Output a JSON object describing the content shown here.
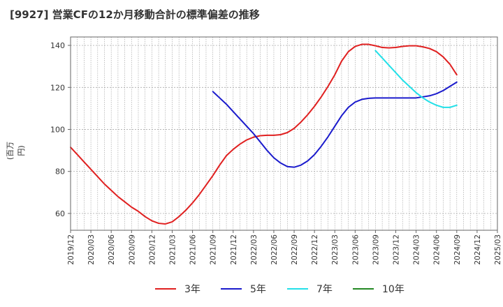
{
  "chart_data": {
    "type": "line",
    "title": "[9927]  営業CFの12か月移動合計の標準偏差の推移",
    "ylabel": "(百万円)",
    "ylim": [
      52,
      144
    ],
    "yticks": [
      60,
      80,
      100,
      120,
      140
    ],
    "xticks": [
      "2019/12",
      "2020/03",
      "2020/06",
      "2020/09",
      "2020/12",
      "2021/03",
      "2021/06",
      "2021/09",
      "2021/12",
      "2022/03",
      "2022/06",
      "2022/09",
      "2022/12",
      "2023/03",
      "2023/06",
      "2023/09",
      "2023/12",
      "2024/03",
      "2024/06",
      "2024/09",
      "2024/12",
      "2025/03"
    ],
    "grid": true,
    "legend_position": "bottom",
    "series": [
      {
        "name": "3年",
        "color": "#e02020",
        "points": [
          [
            "2019/12",
            91.5
          ],
          [
            "2020/01",
            88
          ],
          [
            "2020/02",
            84.5
          ],
          [
            "2020/03",
            81
          ],
          [
            "2020/04",
            77.5
          ],
          [
            "2020/05",
            74
          ],
          [
            "2020/06",
            71
          ],
          [
            "2020/07",
            68
          ],
          [
            "2020/08",
            65.5
          ],
          [
            "2020/09",
            63
          ],
          [
            "2020/10",
            61
          ],
          [
            "2020/11",
            58.5
          ],
          [
            "2020/12",
            56.5
          ],
          [
            "2021/01",
            55.3
          ],
          [
            "2021/02",
            55
          ],
          [
            "2021/03",
            56
          ],
          [
            "2021/04",
            58.5
          ],
          [
            "2021/05",
            61.5
          ],
          [
            "2021/06",
            65
          ],
          [
            "2021/07",
            69
          ],
          [
            "2021/08",
            73.5
          ],
          [
            "2021/09",
            78
          ],
          [
            "2021/10",
            83
          ],
          [
            "2021/11",
            87.5
          ],
          [
            "2021/12",
            90.5
          ],
          [
            "2022/01",
            93
          ],
          [
            "2022/02",
            95
          ],
          [
            "2022/03",
            96.3
          ],
          [
            "2022/04",
            97
          ],
          [
            "2022/05",
            97.2
          ],
          [
            "2022/06",
            97.2
          ],
          [
            "2022/07",
            97.5
          ],
          [
            "2022/08",
            98.5
          ],
          [
            "2022/09",
            100.5
          ],
          [
            "2022/10",
            103.5
          ],
          [
            "2022/11",
            107
          ],
          [
            "2022/12",
            111
          ],
          [
            "2023/01",
            115.5
          ],
          [
            "2023/02",
            120.5
          ],
          [
            "2023/03",
            126
          ],
          [
            "2023/04",
            132.5
          ],
          [
            "2023/05",
            137
          ],
          [
            "2023/06",
            139.5
          ],
          [
            "2023/07",
            140.5
          ],
          [
            "2023/08",
            140.5
          ],
          [
            "2023/09",
            139.8
          ],
          [
            "2023/10",
            139
          ],
          [
            "2023/11",
            138.8
          ],
          [
            "2023/12",
            139
          ],
          [
            "2024/01",
            139.5
          ],
          [
            "2024/02",
            139.8
          ],
          [
            "2024/03",
            139.8
          ],
          [
            "2024/04",
            139.3
          ],
          [
            "2024/05",
            138.5
          ],
          [
            "2024/06",
            137
          ],
          [
            "2024/07",
            134.5
          ],
          [
            "2024/08",
            131
          ],
          [
            "2024/09",
            126
          ]
        ]
      },
      {
        "name": "5年",
        "color": "#1a1acc",
        "points": [
          [
            "2021/09",
            118
          ],
          [
            "2021/10",
            115
          ],
          [
            "2021/11",
            112
          ],
          [
            "2021/12",
            108.5
          ],
          [
            "2022/01",
            105
          ],
          [
            "2022/02",
            101.5
          ],
          [
            "2022/03",
            98
          ],
          [
            "2022/04",
            94
          ],
          [
            "2022/05",
            90
          ],
          [
            "2022/06",
            86.5
          ],
          [
            "2022/07",
            84
          ],
          [
            "2022/08",
            82.3
          ],
          [
            "2022/09",
            82
          ],
          [
            "2022/10",
            83
          ],
          [
            "2022/11",
            85
          ],
          [
            "2022/12",
            88
          ],
          [
            "2023/01",
            92
          ],
          [
            "2023/02",
            96.5
          ],
          [
            "2023/03",
            101.5
          ],
          [
            "2023/04",
            106.5
          ],
          [
            "2023/05",
            110.5
          ],
          [
            "2023/06",
            113
          ],
          [
            "2023/07",
            114.3
          ],
          [
            "2023/08",
            114.8
          ],
          [
            "2023/09",
            115
          ],
          [
            "2023/10",
            115
          ],
          [
            "2023/11",
            115
          ],
          [
            "2023/12",
            115
          ],
          [
            "2024/01",
            115
          ],
          [
            "2024/02",
            115
          ],
          [
            "2024/03",
            115
          ],
          [
            "2024/04",
            115.5
          ],
          [
            "2024/05",
            116
          ],
          [
            "2024/06",
            117
          ],
          [
            "2024/07",
            118.5
          ],
          [
            "2024/08",
            120.5
          ],
          [
            "2024/09",
            122.5
          ]
        ]
      },
      {
        "name": "7年",
        "color": "#22e0e8",
        "points": [
          [
            "2023/09",
            137.5
          ],
          [
            "2023/10",
            134
          ],
          [
            "2023/11",
            130.5
          ],
          [
            "2023/12",
            127
          ],
          [
            "2024/01",
            123.5
          ],
          [
            "2024/02",
            120.5
          ],
          [
            "2024/03",
            117.5
          ],
          [
            "2024/04",
            115
          ],
          [
            "2024/05",
            113
          ],
          [
            "2024/06",
            111.5
          ],
          [
            "2024/07",
            110.5
          ],
          [
            "2024/08",
            110.5
          ],
          [
            "2024/09",
            111.5
          ]
        ]
      },
      {
        "name": "10年",
        "color": "#228822",
        "points": []
      }
    ]
  }
}
